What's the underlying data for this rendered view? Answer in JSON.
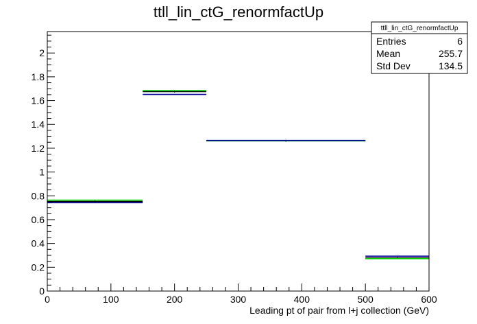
{
  "chart_data": {
    "type": "histogram",
    "title": "ttll_lin_ctG_renormfactUp",
    "xlabel": "Leading pt of pair from l+j collection (GeV)",
    "ylabel": "",
    "xlim": [
      0,
      600
    ],
    "ylim": [
      0,
      2.18
    ],
    "x_ticks": [
      0,
      100,
      200,
      300,
      400,
      500,
      600
    ],
    "y_ticks": [
      0,
      0.2,
      0.4,
      0.6,
      0.8,
      1,
      1.2,
      1.4,
      1.6,
      1.8,
      2
    ],
    "x_tick_labels": [
      "0",
      "100",
      "200",
      "300",
      "400",
      "500",
      "600"
    ],
    "y_tick_labels": [
      "0",
      "0.2",
      "0.4",
      "0.6",
      "0.8",
      "1",
      "1.2",
      "1.4",
      "1.6",
      "1.8",
      "2"
    ],
    "bin_edges": [
      0,
      150,
      250,
      500,
      600
    ],
    "series": [
      {
        "color": "#000000",
        "values": [
          0.752,
          1.676,
          1.262,
          0.278
        ]
      },
      {
        "color": "#00cc00",
        "values": [
          0.764,
          1.684,
          1.262,
          0.272
        ]
      },
      {
        "color": "#000099",
        "values": [
          0.742,
          1.652,
          1.265,
          0.293
        ]
      }
    ],
    "grid": false,
    "legend": "none",
    "stats_box": {
      "title": "ttll_lin_ctG_renormfactUp",
      "rows": [
        {
          "label": "Entries",
          "value": "6"
        },
        {
          "label": "Mean",
          "value": "255.7"
        },
        {
          "label": "Std Dev",
          "value": "134.5"
        }
      ]
    }
  }
}
